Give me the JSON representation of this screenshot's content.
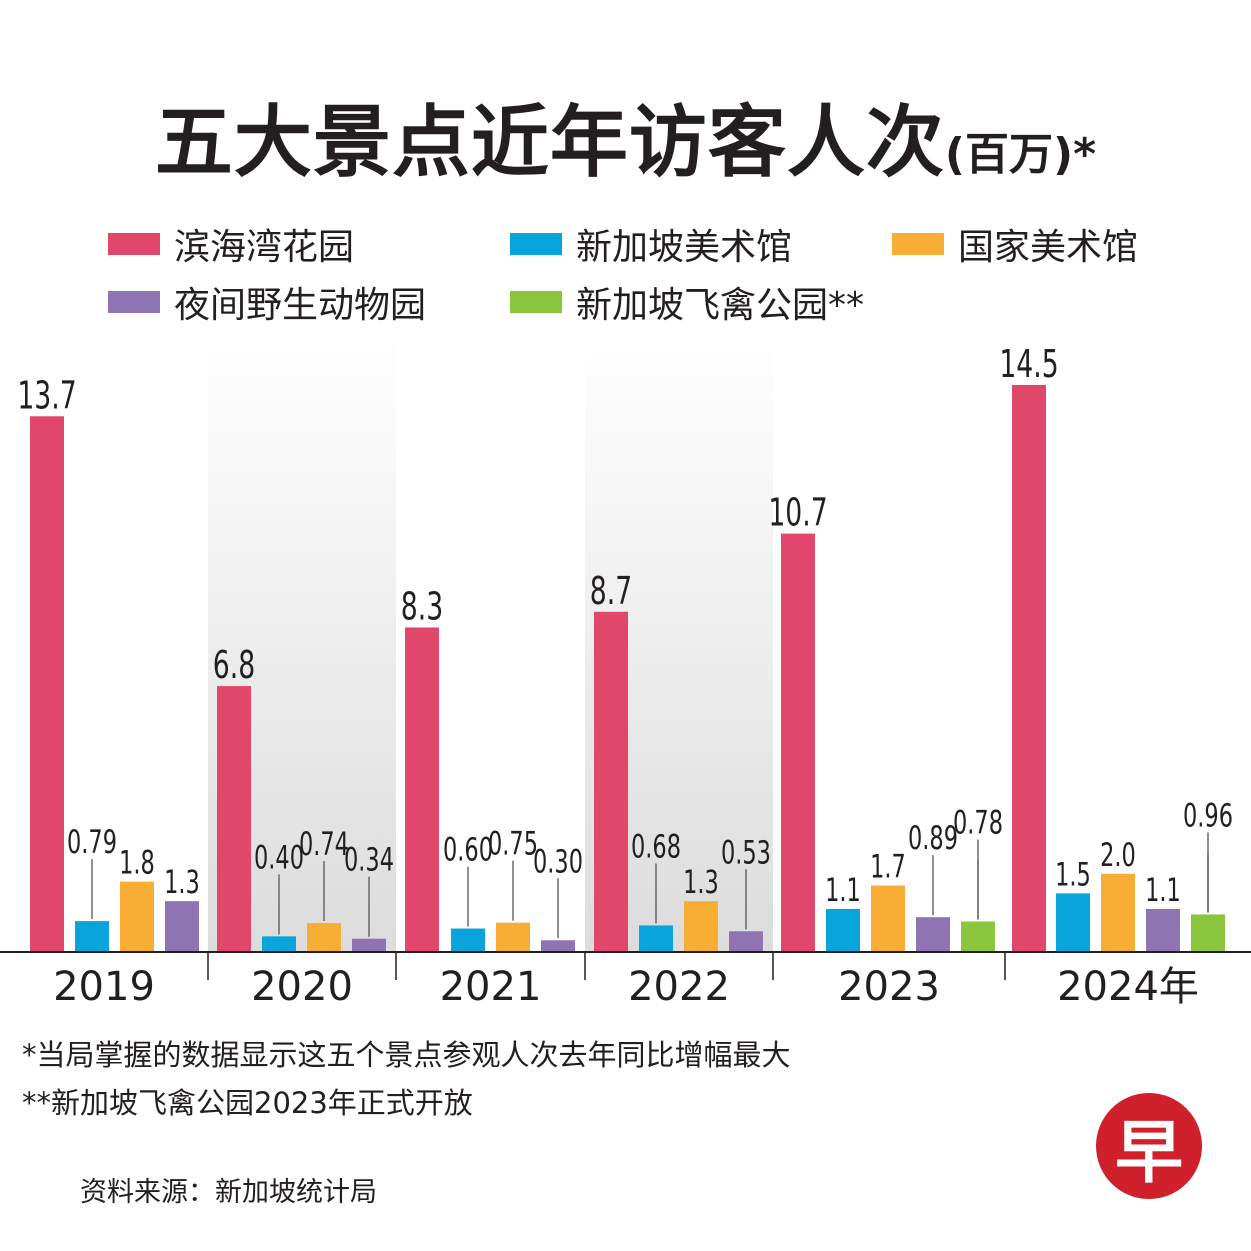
{
  "title": {
    "main": "五大景点近年访客人次",
    "sub": "(百万)*"
  },
  "legend": [
    {
      "name": "滨海湾花园",
      "color": "#e0476a"
    },
    {
      "name": "新加坡美术馆",
      "color": "#0aa4dd"
    },
    {
      "name": "国家美术馆",
      "color": "#f8ad34"
    },
    {
      "name": "夜间野生动物园",
      "color": "#8f74b4"
    },
    {
      "name": "新加坡飞禽公园**",
      "color": "#8cc63f"
    }
  ],
  "chart_data": {
    "type": "bar",
    "categories": [
      "2019",
      "2020",
      "2021",
      "2022",
      "2023",
      "2024年"
    ],
    "series": [
      {
        "name": "滨海湾花园",
        "color": "#e0476a",
        "values": [
          13.7,
          6.8,
          8.3,
          8.7,
          10.7,
          14.5
        ],
        "labels": [
          "13.7",
          "6.8",
          "8.3",
          "8.7",
          "10.7",
          "14.5"
        ]
      },
      {
        "name": "新加坡美术馆",
        "color": "#0aa4dd",
        "values": [
          0.79,
          0.4,
          0.6,
          0.68,
          1.1,
          1.5
        ],
        "labels": [
          "0.79",
          "0.40",
          "0.60",
          "0.68",
          "1.1",
          "1.5"
        ]
      },
      {
        "name": "国家美术馆",
        "color": "#f8ad34",
        "values": [
          1.8,
          0.74,
          0.75,
          1.3,
          1.7,
          2.0
        ],
        "labels": [
          "1.8",
          "0.74",
          "0.75",
          "1.3",
          "1.7",
          "2.0"
        ]
      },
      {
        "name": "夜间野生动物园",
        "color": "#8f74b4",
        "values": [
          1.3,
          0.34,
          0.3,
          0.53,
          0.89,
          1.1
        ],
        "labels": [
          "1.3",
          "0.34",
          "0.30",
          "0.53",
          "0.89",
          "1.1"
        ]
      },
      {
        "name": "新加坡飞禽公园**",
        "color": "#8cc63f",
        "values": [
          null,
          null,
          null,
          null,
          0.78,
          0.96
        ],
        "labels": [
          "",
          "",
          "",
          "",
          "0.78",
          "0.96"
        ]
      }
    ],
    "ylim": [
      0,
      15
    ],
    "grid": false,
    "legend_position": "top"
  },
  "notes": [
    "*当局掌握的数据显示这五个景点参观人次去年同比增幅最大",
    "**新加坡飞禽公园2023年正式开放"
  ],
  "source": "资料来源：新加坡统计局",
  "logo_text": "早"
}
